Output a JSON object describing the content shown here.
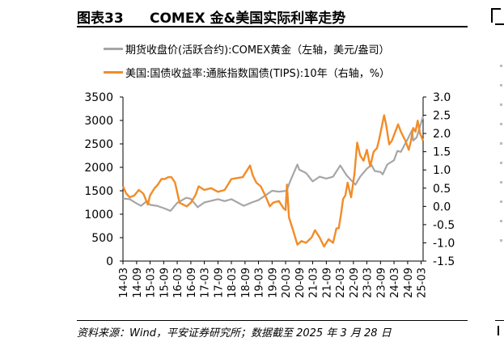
{
  "figure": {
    "number": "图表33",
    "title": "COMEX 金&美国实际利率走势"
  },
  "legend": [
    {
      "label": "期货收盘价(活跃合约):COMEX黄金（左轴，美元/盎司）",
      "color": "#a6a6a6"
    },
    {
      "label": "美国:国债收益率:通胀指数国债(TIPS):10年（右轴，%）",
      "color": "#f28c28"
    }
  ],
  "source": "资料来源：Wind，平安证券研究所；数据截至 2025 年 3 月 28 日",
  "chart_data": {
    "type": "line",
    "x_tick_labels": [
      "14-03",
      "14-09",
      "15-03",
      "15-09",
      "16-03",
      "16-09",
      "17-03",
      "17-09",
      "18-03",
      "18-09",
      "19-03",
      "19-09",
      "20-03",
      "20-09",
      "21-03",
      "21-09",
      "22-03",
      "22-09",
      "23-03",
      "23-09",
      "24-03",
      "24-09",
      "25-03"
    ],
    "y_left": {
      "min": 0,
      "max": 3500,
      "ticks": [
        0,
        500,
        1000,
        1500,
        2000,
        2500,
        3000,
        3500
      ]
    },
    "y_right": {
      "min": -1.5,
      "max": 3.0,
      "ticks": [
        -1.5,
        -1.0,
        -0.5,
        0.0,
        0.5,
        1.0,
        1.5,
        2.0,
        2.5,
        3.0
      ]
    },
    "y_right_tick_labels": [
      "-1.5",
      "-1.0",
      "-0.5",
      "0.0",
      "0.5",
      "1.0",
      "1.5",
      "2.0",
      "2.5",
      "3.0"
    ],
    "series": [
      {
        "name": "期货收盘价(活跃合约):COMEX黄金（左轴，美元/盎司）",
        "axis": "left",
        "color": "#a6a6a6",
        "x": [
          "2014-03-01",
          "2014-06-01",
          "2014-09-01",
          "2014-11-01",
          "2015-01-15",
          "2015-03-01",
          "2015-06-01",
          "2015-09-01",
          "2015-12-01",
          "2016-03-01",
          "2016-07-01",
          "2016-09-01",
          "2016-12-01",
          "2017-03-01",
          "2017-09-01",
          "2017-12-01",
          "2018-03-01",
          "2018-08-15",
          "2018-12-01",
          "2019-03-01",
          "2019-06-01",
          "2019-09-01",
          "2019-12-01",
          "2020-03-15",
          "2020-05-01",
          "2020-08-07",
          "2020-09-01",
          "2020-12-01",
          "2021-03-01",
          "2021-06-01",
          "2021-09-01",
          "2021-12-01",
          "2022-03-08",
          "2022-06-01",
          "2022-09-28",
          "2022-12-01",
          "2023-03-01",
          "2023-05-04",
          "2023-06-15",
          "2023-09-01",
          "2023-10-01",
          "2023-12-01",
          "2024-03-01",
          "2024-04-15",
          "2024-06-01",
          "2024-09-01",
          "2024-10-30",
          "2024-11-15",
          "2025-01-01",
          "2025-03-28"
        ],
        "values": [
          1335,
          1320,
          1230,
          1180,
          1280,
          1200,
          1180,
          1130,
          1070,
          1240,
          1350,
          1330,
          1150,
          1250,
          1320,
          1280,
          1320,
          1180,
          1250,
          1300,
          1400,
          1500,
          1480,
          1500,
          1700,
          2060,
          1950,
          1880,
          1700,
          1800,
          1760,
          1800,
          2040,
          1830,
          1630,
          1800,
          1970,
          2050,
          1920,
          1900,
          1850,
          2060,
          2150,
          2350,
          2330,
          2600,
          2790,
          2570,
          2640,
          3090
        ]
      },
      {
        "name": "美国:国债收益率:通胀指数国债(TIPS):10年（右轴，%）",
        "axis": "right",
        "color": "#f28c28",
        "x": [
          "2014-03-01",
          "2014-04-15",
          "2014-06-01",
          "2014-08-01",
          "2014-10-01",
          "2014-12-01",
          "2015-01-30",
          "2015-03-01",
          "2015-05-01",
          "2015-06-15",
          "2015-08-01",
          "2015-09-15",
          "2015-11-01",
          "2015-12-15",
          "2016-02-01",
          "2016-04-01",
          "2016-07-08",
          "2016-09-01",
          "2016-11-01",
          "2016-12-15",
          "2017-03-01",
          "2017-06-01",
          "2017-09-01",
          "2017-12-01",
          "2018-03-01",
          "2018-06-01",
          "2018-08-01",
          "2018-11-08",
          "2018-12-15",
          "2019-02-01",
          "2019-04-01",
          "2019-06-01",
          "2019-08-01",
          "2019-09-15",
          "2019-12-01",
          "2020-02-01",
          "2020-03-01",
          "2020-03-19",
          "2020-04-15",
          "2020-06-01",
          "2020-08-07",
          "2020-10-01",
          "2020-12-01",
          "2021-02-15",
          "2021-04-01",
          "2021-06-01",
          "2021-08-01",
          "2021-10-01",
          "2021-12-01",
          "2022-01-15",
          "2022-02-15",
          "2022-03-15",
          "2022-04-15",
          "2022-05-15",
          "2022-06-15",
          "2022-08-01",
          "2022-09-15",
          "2022-10-21",
          "2022-12-01",
          "2023-01-15",
          "2023-03-01",
          "2023-04-15",
          "2023-06-01",
          "2023-07-15",
          "2023-08-15",
          "2023-10-19",
          "2023-11-15",
          "2023-12-27",
          "2024-02-01",
          "2024-04-25",
          "2024-06-01",
          "2024-08-01",
          "2024-09-16",
          "2024-10-15",
          "2024-11-15",
          "2024-12-15",
          "2025-01-14",
          "2025-02-15",
          "2025-03-28"
        ],
        "values": [
          0.55,
          0.35,
          0.25,
          0.3,
          0.45,
          0.35,
          0.05,
          0.3,
          0.5,
          0.6,
          0.75,
          0.75,
          0.8,
          0.8,
          0.65,
          0.1,
          0.0,
          0.1,
          0.3,
          0.55,
          0.45,
          0.5,
          0.4,
          0.45,
          0.75,
          0.78,
          0.8,
          1.12,
          0.85,
          0.65,
          0.55,
          0.3,
          0.0,
          0.1,
          0.15,
          -0.05,
          -0.1,
          0.6,
          -0.3,
          -0.6,
          -1.05,
          -0.95,
          -1.0,
          -0.85,
          -0.65,
          -0.85,
          -1.1,
          -0.9,
          -1.0,
          -0.6,
          -0.6,
          -0.25,
          0.2,
          0.3,
          0.65,
          0.25,
          0.9,
          1.75,
          1.4,
          1.25,
          1.55,
          1.1,
          1.5,
          1.6,
          1.85,
          2.5,
          2.25,
          1.7,
          1.8,
          2.25,
          2.05,
          1.8,
          1.55,
          1.8,
          2.15,
          2.05,
          2.35,
          2.0,
          1.8
        ]
      }
    ]
  }
}
